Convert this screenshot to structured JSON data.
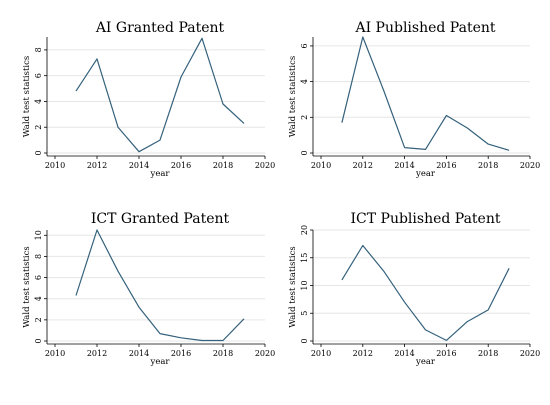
{
  "chart_data": [
    {
      "type": "line",
      "title": "AI Granted Patent",
      "xlabel": "year",
      "ylabel": "Wald test statistics",
      "x": [
        2011,
        2012,
        2013,
        2014,
        2015,
        2016,
        2017,
        2018,
        2019
      ],
      "values": [
        4.8,
        7.3,
        2.0,
        0.1,
        1.0,
        5.9,
        8.9,
        3.8,
        2.3
      ],
      "xticks": [
        2010,
        2012,
        2014,
        2016,
        2018,
        2020
      ],
      "yticks": [
        0,
        2,
        4,
        6,
        8
      ],
      "xlim": [
        2010,
        2020
      ],
      "ylim": [
        0,
        9
      ],
      "grid": true
    },
    {
      "type": "line",
      "title": "AI Published Patent",
      "xlabel": "year",
      "ylabel": "Wald test statistics",
      "x": [
        2011,
        2012,
        2013,
        2014,
        2015,
        2016,
        2017,
        2018,
        2019
      ],
      "values": [
        1.7,
        6.5,
        3.5,
        0.3,
        0.2,
        2.1,
        1.4,
        0.5,
        0.15
      ],
      "xticks": [
        2010,
        2012,
        2014,
        2016,
        2018,
        2020
      ],
      "yticks": [
        0,
        2,
        4,
        6
      ],
      "xlim": [
        2010,
        2020
      ],
      "ylim": [
        0,
        6.5
      ],
      "grid": true
    },
    {
      "type": "line",
      "title": "ICT Granted Patent",
      "xlabel": "year",
      "ylabel": "Wald test statistics",
      "x": [
        2011,
        2012,
        2013,
        2014,
        2015,
        2016,
        2017,
        2018,
        2019
      ],
      "values": [
        4.3,
        10.5,
        6.6,
        3.2,
        0.7,
        0.3,
        0.05,
        0.05,
        2.1
      ],
      "xticks": [
        2010,
        2012,
        2014,
        2016,
        2018,
        2020
      ],
      "yticks": [
        0,
        2,
        4,
        6,
        8,
        10
      ],
      "xlim": [
        2010,
        2020
      ],
      "ylim": [
        0,
        10.5
      ],
      "grid": true
    },
    {
      "type": "line",
      "title": "ICT Published Patent",
      "xlabel": "year",
      "ylabel": "Wald test statistics",
      "x": [
        2011,
        2012,
        2013,
        2014,
        2015,
        2016,
        2017,
        2018,
        2019
      ],
      "values": [
        11.0,
        17.2,
        12.6,
        7.0,
        2.0,
        0.1,
        3.5,
        5.6,
        13.1
      ],
      "xticks": [
        2010,
        2012,
        2014,
        2016,
        2018,
        2020
      ],
      "yticks": [
        0,
        5,
        10,
        15,
        20
      ],
      "xlim": [
        2010,
        2020
      ],
      "ylim": [
        0,
        20
      ],
      "grid": true
    }
  ]
}
